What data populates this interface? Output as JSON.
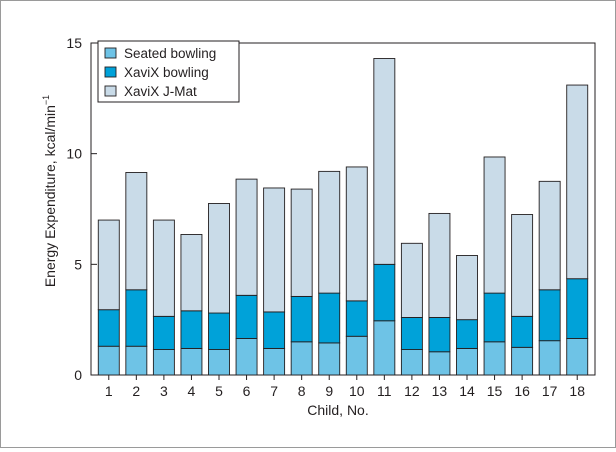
{
  "chart_data": {
    "type": "bar",
    "stacked": true,
    "title": "",
    "xlabel": "Child, No.",
    "ylabel": "Energy Expenditure, kcal/min",
    "ylabel_superscript": "−1",
    "ylim": [
      0,
      15
    ],
    "yticks": [
      "0",
      "5",
      "10",
      "15"
    ],
    "ytick_values": [
      0,
      5,
      10,
      15
    ],
    "grid": false,
    "legend_position": "top-left",
    "categories": [
      "1",
      "2",
      "3",
      "4",
      "5",
      "6",
      "7",
      "8",
      "9",
      "10",
      "11",
      "12",
      "13",
      "14",
      "15",
      "16",
      "17",
      "18"
    ],
    "series": [
      {
        "name": "Seated bowling",
        "color": "#6ec3e6",
        "values": [
          1.3,
          1.3,
          1.15,
          1.2,
          1.15,
          1.65,
          1.2,
          1.5,
          1.45,
          1.75,
          2.45,
          1.15,
          1.05,
          1.2,
          1.5,
          1.25,
          1.55,
          1.65
        ]
      },
      {
        "name": "XaviX bowling",
        "color": "#00a2d9",
        "values": [
          1.65,
          2.55,
          1.5,
          1.7,
          1.65,
          1.95,
          1.65,
          2.05,
          2.25,
          1.6,
          2.55,
          1.45,
          1.55,
          1.3,
          2.2,
          1.4,
          2.3,
          2.7
        ]
      },
      {
        "name": "XaviX J-Mat",
        "color": "#c9dbe8",
        "values": [
          4.05,
          5.3,
          4.35,
          3.45,
          4.95,
          5.25,
          5.6,
          4.85,
          5.5,
          6.05,
          9.3,
          3.35,
          4.7,
          2.9,
          6.15,
          4.6,
          4.9,
          8.75
        ]
      }
    ]
  }
}
